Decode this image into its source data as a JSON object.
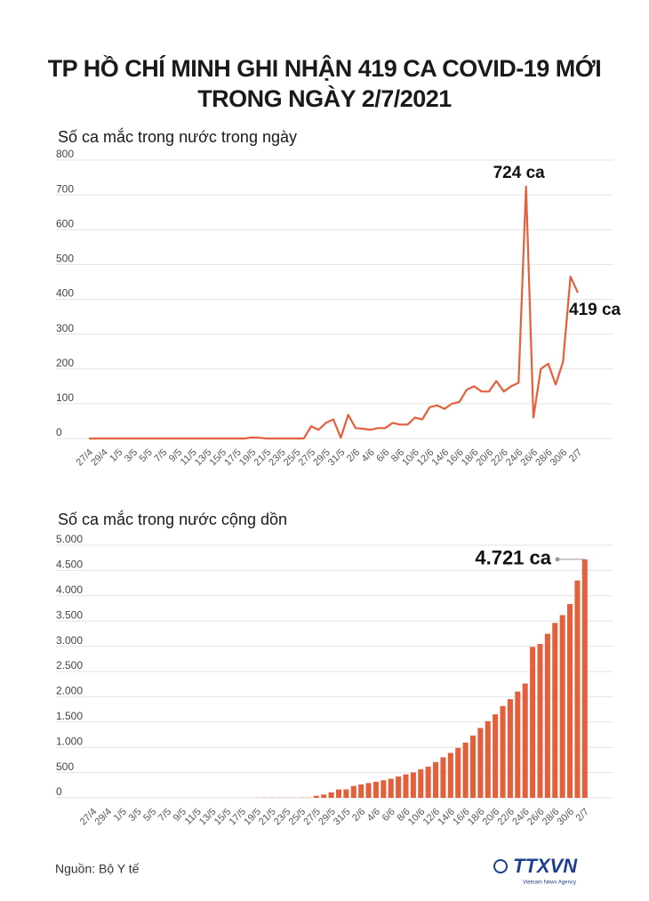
{
  "title": "TP HỒ CHÍ MINH GHI NHẬN 419 CA COVID-19 MỚI TRONG NGÀY 2/7/2021",
  "footer": {
    "source": "Nguồn: Bộ Y tế",
    "logo": "TTXVN",
    "logo_sub": "Vietnam News Agency"
  },
  "chart_data": [
    {
      "type": "line",
      "title": "Số ca mắc trong nước trong ngày",
      "color": "#e2603b",
      "grid": true,
      "categories": [
        "27/4",
        null,
        "29/4",
        null,
        "1/5",
        null,
        "3/5",
        null,
        "5/5",
        null,
        "7/5",
        null,
        "9/5",
        null,
        "11/5",
        null,
        "13/5",
        null,
        "15/5",
        null,
        "17/5",
        null,
        "19/5",
        null,
        "21/5",
        null,
        "23/5",
        null,
        "25/5",
        null,
        "27/5",
        null,
        "29/5",
        null,
        "31/5",
        null,
        "2/6",
        null,
        "4/6",
        null,
        "6/6",
        null,
        "8/6",
        null,
        "10/6",
        null,
        "12/6",
        null,
        "14/6",
        null,
        "16/6",
        null,
        "18/6",
        null,
        "20/6",
        null,
        "22/6",
        null,
        "24/6",
        null,
        "26/6",
        null,
        "28/6",
        null,
        "30/6",
        null,
        "2/7"
      ],
      "values": [
        0,
        0,
        0,
        0,
        0,
        0,
        0,
        0,
        0,
        0,
        0,
        0,
        0,
        0,
        0,
        0,
        0,
        0,
        0,
        0,
        0,
        0,
        3,
        2,
        0,
        0,
        0,
        0,
        0,
        0,
        35,
        25,
        45,
        55,
        2,
        68,
        30,
        28,
        25,
        30,
        30,
        45,
        40,
        40,
        60,
        55,
        90,
        95,
        85,
        100,
        105,
        140,
        150,
        135,
        135,
        165,
        135,
        150,
        160,
        724,
        60,
        200,
        215,
        155,
        220,
        465,
        419
      ],
      "value_labels": [
        null,
        null,
        null,
        null,
        null,
        null,
        null,
        null,
        null,
        null,
        null,
        null,
        null,
        null,
        null,
        null,
        null,
        null,
        null,
        null,
        null,
        null,
        null,
        null,
        null,
        null,
        null,
        null,
        null,
        null,
        null,
        null,
        null,
        null,
        null,
        null,
        null,
        null,
        null,
        null,
        null,
        null,
        null,
        null,
        null,
        null,
        null,
        null,
        null,
        null,
        null,
        null,
        null,
        null,
        null,
        null,
        null,
        null,
        null,
        "724 ca",
        null,
        null,
        null,
        null,
        null,
        null,
        "419 ca"
      ],
      "ylim": [
        0,
        800
      ],
      "yticks": [
        0,
        100,
        200,
        300,
        400,
        500,
        600,
        700,
        800
      ]
    },
    {
      "type": "bar",
      "title": "Số ca mắc trong nước cộng dồn",
      "color": "#e2603b",
      "grid": true,
      "categories": [
        "27/4",
        null,
        "29/4",
        null,
        "1/5",
        null,
        "3/5",
        null,
        "5/5",
        null,
        "7/5",
        null,
        "9/5",
        null,
        "11/5",
        null,
        "13/5",
        null,
        "15/5",
        null,
        "17/5",
        null,
        "19/5",
        null,
        "21/5",
        null,
        "23/5",
        null,
        "25/5",
        null,
        "27/5",
        null,
        "29/5",
        null,
        "31/5",
        null,
        "2/6",
        null,
        "4/6",
        null,
        "6/6",
        null,
        "8/6",
        null,
        "10/6",
        null,
        "12/6",
        null,
        "14/6",
        null,
        "16/6",
        null,
        "18/6",
        null,
        "20/6",
        null,
        "22/6",
        null,
        "24/6",
        null,
        "26/6",
        null,
        "28/6",
        null,
        "30/6",
        null,
        "2/7"
      ],
      "values": [
        0,
        0,
        0,
        0,
        0,
        0,
        0,
        0,
        0,
        0,
        0,
        0,
        0,
        0,
        0,
        0,
        0,
        0,
        0,
        0,
        0,
        0,
        3,
        5,
        5,
        5,
        5,
        5,
        5,
        5,
        40,
        65,
        110,
        165,
        167,
        235,
        265,
        293,
        318,
        348,
        378,
        423,
        463,
        503,
        563,
        618,
        708,
        803,
        888,
        988,
        1093,
        1233,
        1383,
        1518,
        1653,
        1818,
        1953,
        2103,
        2263,
        2987,
        3047,
        3247,
        3462,
        3617,
        3837,
        4302,
        4721
      ],
      "value_labels": [
        null,
        null,
        null,
        null,
        null,
        null,
        null,
        null,
        null,
        null,
        null,
        null,
        null,
        null,
        null,
        null,
        null,
        null,
        null,
        null,
        null,
        null,
        null,
        null,
        null,
        null,
        null,
        null,
        null,
        null,
        null,
        null,
        null,
        null,
        null,
        null,
        null,
        null,
        null,
        null,
        null,
        null,
        null,
        null,
        null,
        null,
        null,
        null,
        null,
        null,
        null,
        null,
        null,
        null,
        null,
        null,
        null,
        null,
        null,
        null,
        null,
        null,
        null,
        null,
        null,
        null,
        "4.721 ca"
      ],
      "ylim": [
        0,
        5000
      ],
      "yticks": [
        0,
        500,
        {
          "value": 1000,
          "label": "1.000"
        },
        {
          "value": 1500,
          "label": "1.500"
        },
        {
          "value": 2000,
          "label": "2.000"
        },
        {
          "value": 2500,
          "label": "2.500"
        },
        {
          "value": 3000,
          "label": "3.000"
        },
        {
          "value": 3500,
          "label": "3.500"
        },
        {
          "value": 4000,
          "label": "4.000"
        },
        {
          "value": 4500,
          "label": "4.500"
        },
        {
          "value": 5000,
          "label": "5.000"
        }
      ]
    }
  ]
}
